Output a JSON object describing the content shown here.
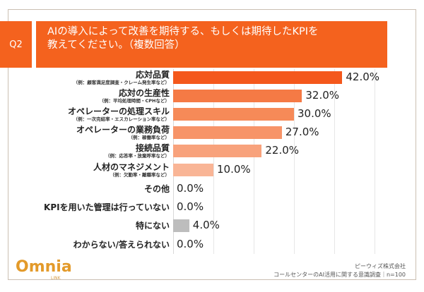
{
  "header": {
    "question": "Q2",
    "title_lines": [
      "AIの導入によって改善を期待する、もしくは期待したKPIを",
      "教えてください。（複数回答）"
    ]
  },
  "chart_data": {
    "type": "bar",
    "orientation": "horizontal",
    "xlim": [
      0,
      50
    ],
    "grid": true,
    "categories": [
      {
        "label": "応対品質",
        "note": "（例：顧客満足度調査・クレーム発生率など）"
      },
      {
        "label": "応対の生産性",
        "note": "（例：平均処理時間・CPHなど）"
      },
      {
        "label": "オペレーターの処理スキル",
        "note": "（例：一次完結率・エスカレーション率など）"
      },
      {
        "label": "オペレーターの業務負荷",
        "note": "（例：稼働率など）"
      },
      {
        "label": "接続品質",
        "note": "（例：応答率・放棄呼率など）"
      },
      {
        "label": "人材のマネジメント",
        "note": "（例：欠勤率・離職率など）"
      },
      {
        "label": "その他",
        "note": ""
      },
      {
        "label": "KPIを用いた管理は行っていない",
        "note": ""
      },
      {
        "label": "特にない",
        "note": ""
      },
      {
        "label": "わからない/答えられない",
        "note": ""
      }
    ],
    "values": [
      42.0,
      32.0,
      30.0,
      27.0,
      22.0,
      10.0,
      0.0,
      0.0,
      4.0,
      0.0
    ],
    "value_labels": [
      "42.0%",
      "32.0%",
      "30.0%",
      "27.0%",
      "22.0%",
      "10.0%",
      "0.0%",
      "0.0%",
      "4.0%",
      "0.0%"
    ],
    "colors": [
      "#f4581c",
      "#f57a45",
      "#f68a58",
      "#f79468",
      "#f8a27c",
      "#f9b596",
      "#f9b596",
      "#f9b596",
      "#bdbdbd",
      "#bdbdbd"
    ]
  },
  "footer": {
    "logo": "Omnia",
    "logo_sub": "LINK",
    "company": "ピーウィズ株式会社",
    "survey": "コールセンターのAI活用に関する意識調査｜n=100"
  }
}
